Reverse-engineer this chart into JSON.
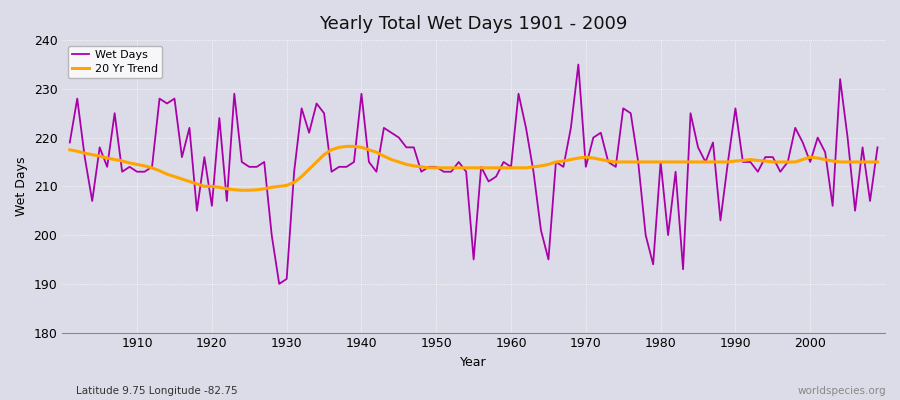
{
  "title": "Yearly Total Wet Days 1901 - 2009",
  "xlabel": "Year",
  "ylabel": "Wet Days",
  "subtitle": "Latitude 9.75 Longitude -82.75",
  "watermark": "worldspecies.org",
  "legend_labels": [
    "Wet Days",
    "20 Yr Trend"
  ],
  "wet_days_color": "#AA00AA",
  "trend_color": "#FFA500",
  "background_color": "#DCDCE8",
  "plot_bg_color": "#DCDCE8",
  "ylim": [
    180,
    240
  ],
  "xlim": [
    1901,
    2009
  ],
  "yticks": [
    180,
    190,
    200,
    210,
    220,
    230,
    240
  ],
  "xticks": [
    1910,
    1920,
    1930,
    1940,
    1950,
    1960,
    1970,
    1980,
    1990,
    2000
  ],
  "wet_days": {
    "1901": 219,
    "1902": 228,
    "1903": 216,
    "1904": 207,
    "1905": 218,
    "1906": 214,
    "1907": 225,
    "1908": 213,
    "1909": 214,
    "1910": 213,
    "1911": 213,
    "1912": 214,
    "1913": 228,
    "1914": 227,
    "1915": 228,
    "1916": 216,
    "1917": 222,
    "1918": 205,
    "1919": 216,
    "1920": 206,
    "1921": 224,
    "1922": 207,
    "1923": 229,
    "1924": 215,
    "1925": 214,
    "1926": 214,
    "1927": 215,
    "1928": 200,
    "1929": 190,
    "1930": 191,
    "1931": 213,
    "1932": 226,
    "1933": 221,
    "1934": 227,
    "1935": 225,
    "1936": 213,
    "1937": 214,
    "1938": 214,
    "1939": 215,
    "1940": 229,
    "1941": 215,
    "1942": 213,
    "1943": 222,
    "1944": 221,
    "1945": 220,
    "1946": 218,
    "1947": 218,
    "1948": 213,
    "1949": 214,
    "1950": 214,
    "1951": 213,
    "1952": 213,
    "1953": 215,
    "1954": 213,
    "1955": 195,
    "1956": 214,
    "1957": 211,
    "1958": 212,
    "1959": 215,
    "1960": 214,
    "1961": 229,
    "1962": 222,
    "1963": 213,
    "1964": 201,
    "1965": 195,
    "1966": 215,
    "1967": 214,
    "1968": 222,
    "1969": 235,
    "1970": 214,
    "1971": 220,
    "1972": 221,
    "1973": 215,
    "1974": 214,
    "1975": 226,
    "1976": 225,
    "1977": 215,
    "1978": 200,
    "1979": 194,
    "1980": 215,
    "1981": 200,
    "1982": 213,
    "1983": 193,
    "1984": 225,
    "1985": 218,
    "1986": 215,
    "1987": 219,
    "1988": 203,
    "1989": 215,
    "1990": 226,
    "1991": 215,
    "1992": 215,
    "1993": 213,
    "1994": 216,
    "1995": 216,
    "1996": 213,
    "1997": 215,
    "1998": 222,
    "1999": 219,
    "2000": 215,
    "2001": 220,
    "2002": 217,
    "2003": 206,
    "2004": 232,
    "2005": 220,
    "2006": 205,
    "2007": 218,
    "2008": 207,
    "2009": 218
  },
  "trend": {
    "1901": 217.5,
    "1902": 217.2,
    "1903": 216.8,
    "1904": 216.5,
    "1905": 216.2,
    "1906": 215.8,
    "1907": 215.5,
    "1908": 215.2,
    "1909": 214.8,
    "1910": 214.5,
    "1911": 214.2,
    "1912": 213.8,
    "1913": 213.2,
    "1914": 212.5,
    "1915": 212.0,
    "1916": 211.5,
    "1917": 211.0,
    "1918": 210.5,
    "1919": 210.0,
    "1920": 210.0,
    "1921": 209.8,
    "1922": 209.5,
    "1923": 209.3,
    "1924": 209.2,
    "1925": 209.2,
    "1926": 209.3,
    "1927": 209.5,
    "1928": 209.8,
    "1929": 210.0,
    "1930": 210.2,
    "1931": 210.8,
    "1932": 212.0,
    "1933": 213.5,
    "1934": 215.0,
    "1935": 216.5,
    "1936": 217.5,
    "1937": 218.0,
    "1938": 218.2,
    "1939": 218.2,
    "1940": 218.0,
    "1941": 217.5,
    "1942": 217.0,
    "1943": 216.2,
    "1944": 215.5,
    "1945": 215.0,
    "1946": 214.5,
    "1947": 214.2,
    "1948": 214.0,
    "1949": 213.8,
    "1950": 213.8,
    "1951": 213.8,
    "1952": 213.8,
    "1953": 213.8,
    "1954": 213.8,
    "1955": 213.8,
    "1956": 213.8,
    "1957": 213.8,
    "1958": 213.8,
    "1959": 213.8,
    "1960": 213.8,
    "1961": 213.8,
    "1962": 213.8,
    "1963": 214.0,
    "1964": 214.2,
    "1965": 214.5,
    "1966": 215.0,
    "1967": 215.2,
    "1968": 215.5,
    "1969": 215.8,
    "1970": 216.0,
    "1971": 215.8,
    "1972": 215.5,
    "1973": 215.2,
    "1974": 215.0,
    "1975": 215.0,
    "1976": 215.0,
    "1977": 215.0,
    "1978": 215.0,
    "1979": 215.0,
    "1980": 215.0,
    "1981": 215.0,
    "1982": 215.0,
    "1983": 215.0,
    "1984": 215.0,
    "1985": 215.0,
    "1986": 215.0,
    "1987": 215.0,
    "1988": 215.0,
    "1989": 215.0,
    "1990": 215.2,
    "1991": 215.3,
    "1992": 215.5,
    "1993": 215.3,
    "1994": 215.2,
    "1995": 215.0,
    "1996": 215.0,
    "1997": 215.0,
    "1998": 215.0,
    "1999": 215.5,
    "2000": 216.0,
    "2001": 215.8,
    "2002": 215.5,
    "2003": 215.2,
    "2004": 215.0,
    "2005": 215.0,
    "2006": 215.0,
    "2007": 215.0,
    "2008": 215.0,
    "2009": 215.0
  }
}
